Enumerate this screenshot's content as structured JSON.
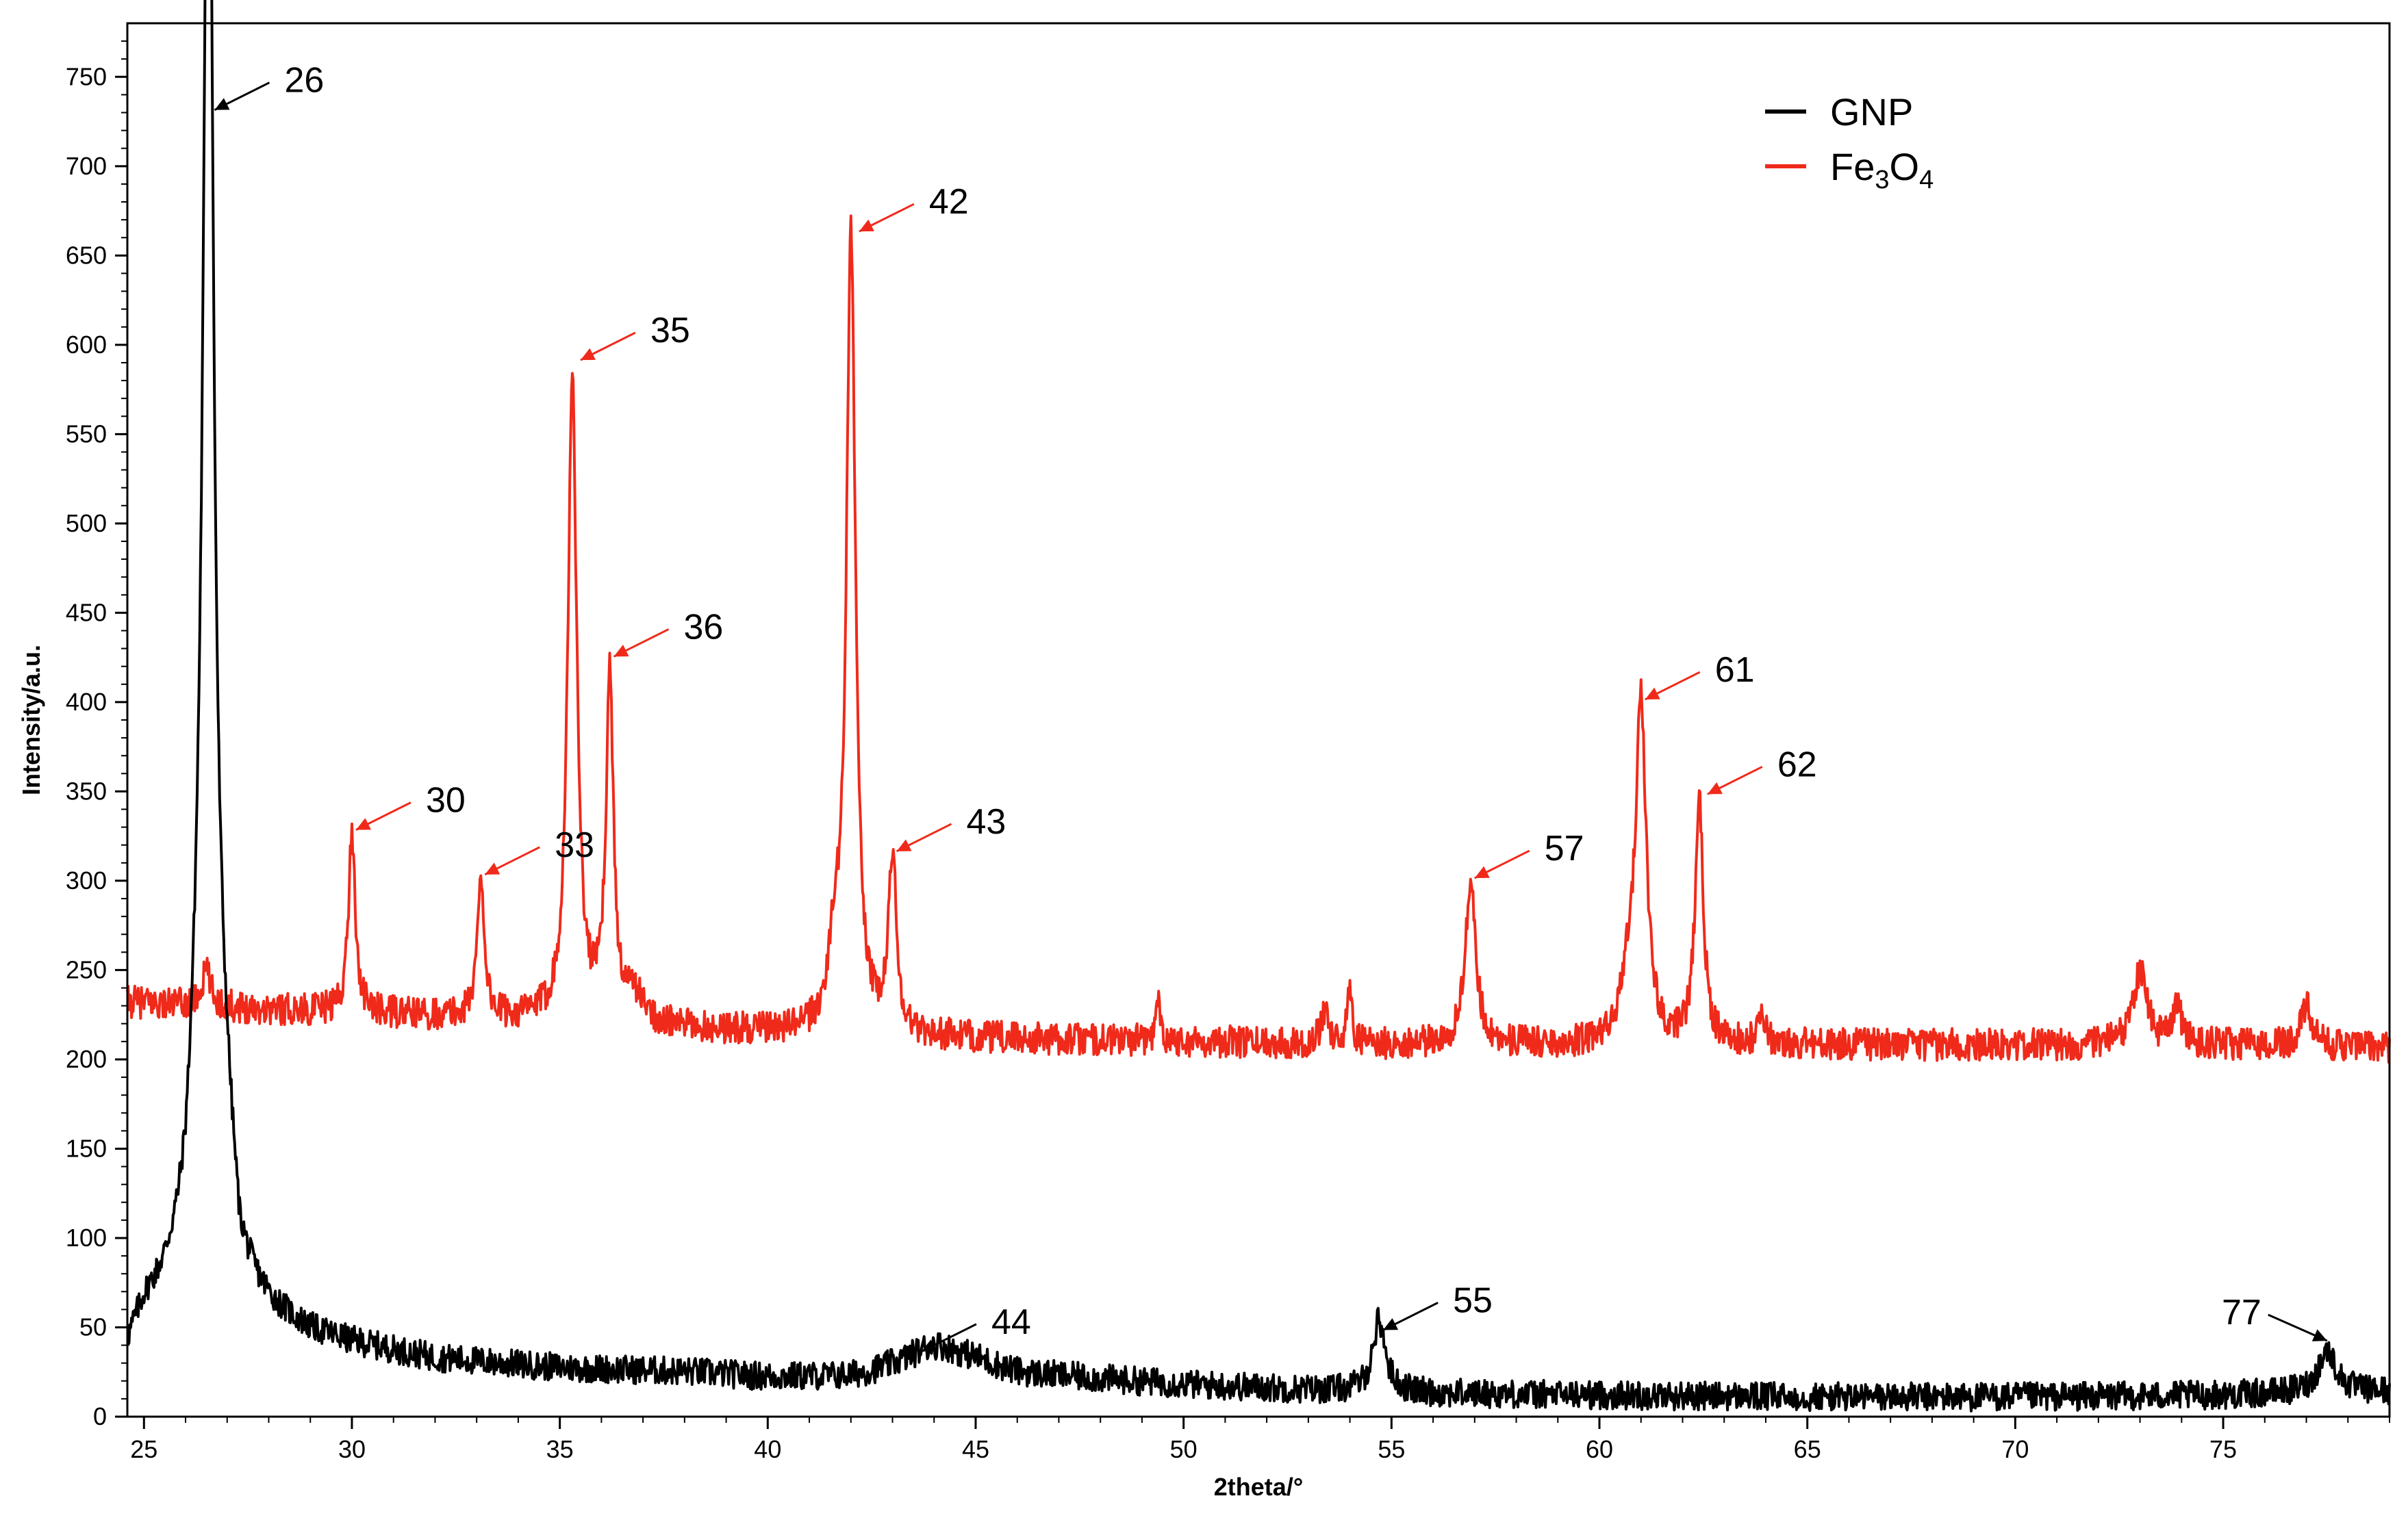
{
  "chart_data": {
    "type": "line",
    "xlabel": "2theta/°",
    "ylabel": "Intensity/a.u.",
    "xlim": [
      24.6,
      79
    ],
    "ylim": [
      0,
      780
    ],
    "x_ticks": [
      25,
      30,
      35,
      40,
      45,
      50,
      55,
      60,
      65,
      70,
      75
    ],
    "y_ticks": [
      0,
      50,
      100,
      150,
      200,
      250,
      300,
      350,
      400,
      450,
      500,
      550,
      600,
      650,
      700,
      750
    ],
    "grid": false,
    "legend_position": "top-right",
    "series": [
      {
        "name": "GNP",
        "color": "#000000",
        "baseline": [
          [
            24.6,
            35
          ],
          [
            25,
            55
          ],
          [
            25.5,
            62
          ],
          [
            26,
            72
          ],
          [
            26.2,
            100
          ],
          [
            26.5,
            150
          ],
          [
            27,
            115
          ],
          [
            27.3,
            65
          ],
          [
            28,
            55
          ],
          [
            29,
            45
          ],
          [
            30,
            40
          ],
          [
            32,
            32
          ],
          [
            35,
            27
          ],
          [
            38,
            25
          ],
          [
            40,
            22
          ],
          [
            42,
            22
          ],
          [
            44,
            30
          ],
          [
            45,
            30
          ],
          [
            46,
            24
          ],
          [
            50,
            18
          ],
          [
            53,
            15
          ],
          [
            55,
            14
          ],
          [
            56,
            13
          ],
          [
            60,
            12
          ],
          [
            65,
            11
          ],
          [
            70,
            11
          ],
          [
            75,
            12
          ],
          [
            77.5,
            14
          ],
          [
            79,
            14
          ]
        ],
        "peaks": [
          {
            "x": 26.55,
            "y": 750,
            "w": 0.13
          },
          {
            "x": 26.5,
            "y": 120,
            "w": 0.45
          },
          {
            "x": 44.0,
            "y": 10,
            "w": 0.8
          },
          {
            "x": 54.7,
            "y": 40,
            "w": 0.18
          },
          {
            "x": 77.5,
            "y": 23,
            "w": 0.25
          }
        ],
        "noise": 8
      },
      {
        "name": "Fe3O4",
        "color": "#f02a1a",
        "baseline": [
          [
            24.6,
            232
          ],
          [
            28,
            228
          ],
          [
            30,
            226
          ],
          [
            34,
            222
          ],
          [
            37,
            218
          ],
          [
            40,
            215
          ],
          [
            44,
            212
          ],
          [
            50,
            210
          ],
          [
            55,
            208
          ],
          [
            60,
            208
          ],
          [
            65,
            208
          ],
          [
            70,
            208
          ],
          [
            75,
            208
          ],
          [
            79,
            207
          ]
        ],
        "peaks": [
          {
            "x": 26.5,
            "y": 20,
            "w": 0.12
          },
          {
            "x": 30.0,
            "y": 100,
            "w": 0.1
          },
          {
            "x": 33.1,
            "y": 80,
            "w": 0.1
          },
          {
            "x": 35.3,
            "y": 360,
            "w": 0.13
          },
          {
            "x": 36.2,
            "y": 190,
            "w": 0.11
          },
          {
            "x": 36.8,
            "y": 15,
            "w": 0.25
          },
          {
            "x": 42.0,
            "y": 450,
            "w": 0.13
          },
          {
            "x": 41.6,
            "y": 40,
            "w": 0.15
          },
          {
            "x": 43.0,
            "y": 100,
            "w": 0.11
          },
          {
            "x": 49.4,
            "y": 25,
            "w": 0.06
          },
          {
            "x": 53.4,
            "y": 20,
            "w": 0.1
          },
          {
            "x": 54.0,
            "y": 35,
            "w": 0.06
          },
          {
            "x": 56.9,
            "y": 92,
            "w": 0.15
          },
          {
            "x": 61.0,
            "y": 190,
            "w": 0.15
          },
          {
            "x": 60.7,
            "y": 30,
            "w": 0.2
          },
          {
            "x": 62.4,
            "y": 135,
            "w": 0.12
          },
          {
            "x": 63.9,
            "y": 18,
            "w": 0.1
          },
          {
            "x": 73.0,
            "y": 42,
            "w": 0.2
          },
          {
            "x": 73.9,
            "y": 22,
            "w": 0.12
          },
          {
            "x": 77.0,
            "y": 22,
            "w": 0.15
          }
        ],
        "noise": 9
      }
    ],
    "annotations": [
      {
        "text": "26",
        "x": 26.6,
        "y": 733,
        "series": "GNP"
      },
      {
        "text": "30",
        "x": 30.0,
        "y": 330,
        "series": "Fe3O4"
      },
      {
        "text": "33",
        "x": 33.1,
        "y": 305,
        "series": "Fe3O4"
      },
      {
        "text": "35",
        "x": 35.4,
        "y": 593,
        "series": "Fe3O4"
      },
      {
        "text": "36",
        "x": 36.2,
        "y": 427,
        "series": "Fe3O4"
      },
      {
        "text": "42",
        "x": 42.1,
        "y": 665,
        "series": "Fe3O4"
      },
      {
        "text": "43",
        "x": 43.0,
        "y": 318,
        "series": "Fe3O4"
      },
      {
        "text": "44",
        "x": 43.6,
        "y": 38,
        "series": "GNP"
      },
      {
        "text": "55",
        "x": 54.7,
        "y": 50,
        "series": "GNP"
      },
      {
        "text": "57",
        "x": 56.9,
        "y": 303,
        "series": "Fe3O4"
      },
      {
        "text": "61",
        "x": 61.0,
        "y": 403,
        "series": "Fe3O4"
      },
      {
        "text": "62",
        "x": 62.5,
        "y": 350,
        "series": "Fe3O4"
      },
      {
        "text": "77",
        "x": 77.4,
        "y": 44,
        "series": "GNP"
      }
    ],
    "legend": [
      {
        "label": "GNP",
        "color": "#000000"
      },
      {
        "label_main": "Fe",
        "sub1": "3",
        "mid": "O",
        "sub2": "4",
        "color": "#f02a1a"
      }
    ]
  }
}
